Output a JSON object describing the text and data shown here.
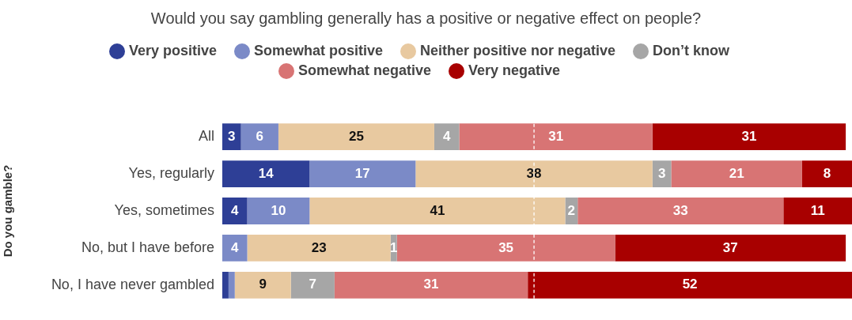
{
  "chart_data": {
    "type": "bar",
    "orientation": "horizontal",
    "stacked": true,
    "title": "Would you say gambling generally has a positive or negative effect on people?",
    "ylabel": "Do you gamble?",
    "categories": [
      "All",
      "Yes, regularly",
      "Yes, sometimes",
      "No, but I have before",
      "No, I have never gambled"
    ],
    "series": [
      {
        "name": "Very positive",
        "color": "#2e3f96",
        "values": [
          3,
          14,
          4,
          0,
          1
        ],
        "value_labels": [
          "3",
          "14",
          "4",
          null,
          null
        ]
      },
      {
        "name": "Somewhat positive",
        "color": "#7b8ac7",
        "values": [
          6,
          17,
          10,
          4,
          1
        ],
        "value_labels": [
          "6",
          "17",
          "10",
          "4",
          null
        ]
      },
      {
        "name": "Neither positive nor negative",
        "color": "#e8c9a0",
        "values": [
          25,
          38,
          41,
          23,
          9
        ],
        "value_labels": [
          "25",
          "38",
          "41",
          "23",
          "9"
        ]
      },
      {
        "name": "Don’t know",
        "color": "#a6a6a6",
        "values": [
          4,
          3,
          2,
          1,
          7
        ],
        "value_labels": [
          "4",
          "3",
          "2",
          "1",
          "7"
        ]
      },
      {
        "name": "Somewhat negative",
        "color": "#d87474",
        "values": [
          31,
          21,
          33,
          35,
          31
        ],
        "value_labels": [
          "31",
          "21",
          "33",
          "35",
          "31"
        ]
      },
      {
        "name": "Very negative",
        "color": "#a80000",
        "values": [
          31,
          8,
          11,
          37,
          52
        ],
        "value_labels": [
          "31",
          "8",
          "11",
          "37",
          "52"
        ]
      }
    ],
    "xlim": [
      0,
      101
    ],
    "ref_lines": [
      {
        "axis": "x",
        "value": 50,
        "color": "#ffffff",
        "line_style": "dashed"
      }
    ],
    "grid": false,
    "legend": "top",
    "tick_labels": "y"
  }
}
